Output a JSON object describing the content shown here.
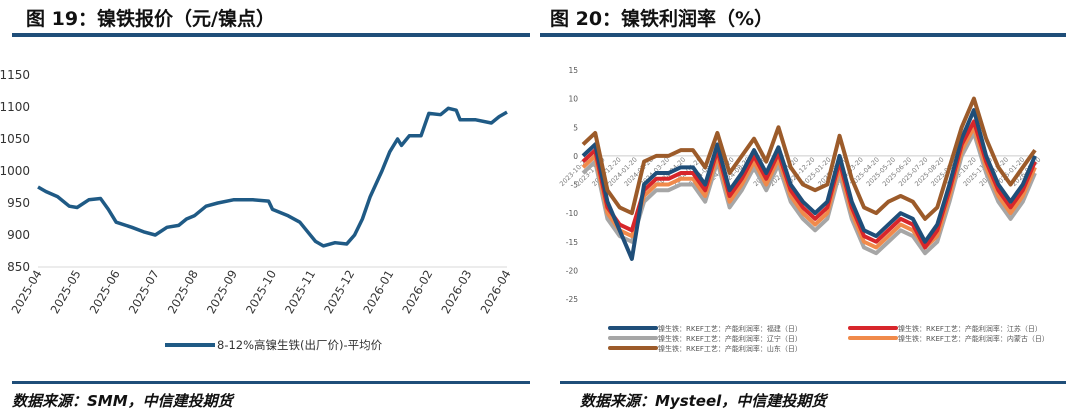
{
  "left": {
    "title": "图 19：镍铁报价（元/镍点）",
    "source": "数据来源：SMM，中信建投期货"
  },
  "right": {
    "title": "图 20：镍铁利润率（%）",
    "source": "数据来源：Mysteel，中信建投期货"
  },
  "chart_data": [
    {
      "type": "line",
      "title": "镍铁报价（元/镍点）",
      "ylim": [
        850,
        1150
      ],
      "yticks": [
        850,
        900,
        950,
        1000,
        1050,
        1100,
        1150
      ],
      "xticks": [
        "2025-04",
        "2025-05",
        "2025-06",
        "2025-07",
        "2025-08",
        "2025-09",
        "2025-10",
        "2025-11",
        "2025-12",
        "2026-01",
        "2026-02",
        "2026-03",
        "2026-04"
      ],
      "legend": "bottom",
      "color": "#1f5a85",
      "series": [
        {
          "name": "8-12%高镍生铁(出厂价)-平均价",
          "x": [
            0,
            0.2,
            0.5,
            0.8,
            1.0,
            1.3,
            1.6,
            1.8,
            2.0,
            2.4,
            2.7,
            3.0,
            3.3,
            3.6,
            3.8,
            4.0,
            4.3,
            4.6,
            5.0,
            5.5,
            5.9,
            6.0,
            6.4,
            6.7,
            6.9,
            7.1,
            7.3,
            7.6,
            7.9,
            8.1,
            8.3,
            8.5,
            8.8,
            9.0,
            9.2,
            9.3,
            9.5,
            9.8,
            10.0,
            10.3,
            10.5,
            10.7,
            10.8,
            11.2,
            11.6,
            11.8,
            12.0
          ],
          "values": [
            975,
            968,
            960,
            945,
            943,
            955,
            957,
            940,
            920,
            912,
            905,
            900,
            912,
            915,
            925,
            930,
            945,
            950,
            955,
            955,
            953,
            940,
            930,
            920,
            905,
            890,
            883,
            888,
            886,
            900,
            925,
            960,
            1000,
            1030,
            1050,
            1040,
            1055,
            1055,
            1090,
            1088,
            1098,
            1095,
            1080,
            1080,
            1075,
            1085,
            1092
          ]
        }
      ]
    },
    {
      "type": "line",
      "title": "镍铁利润率（%）",
      "ylim": [
        -25,
        15
      ],
      "yticks": [
        -25,
        -20,
        -15,
        -10,
        -5,
        0,
        5,
        10,
        15
      ],
      "xticks": [
        "2023-10-20",
        "2023-11-20",
        "2023-12-20",
        "2024-01-20",
        "2024-02-20",
        "2024-03-20",
        "2024-04-20",
        "2024-05-20",
        "2024-06-20",
        "2024-07-20",
        "2024-08-20",
        "2024-09-20",
        "2024-10-20",
        "2024-11-20",
        "2024-12-20",
        "2025-01-20",
        "2025-02-20",
        "2025-03-20",
        "2025-04-20",
        "2025-05-20",
        "2025-06-20",
        "2025-07-20",
        "2025-08-20",
        "2025-09-20",
        "2025-10-20",
        "2025-11-20",
        "2025-12-20",
        "2026-01-20",
        "2026-02-20"
      ],
      "legend": "bottom",
      "series": [
        {
          "name": "镍生铁：RKEF工艺：产能利润率：福建（日）",
          "color": "#1f4e79",
          "values": [
            0,
            2,
            -8,
            -13,
            -18,
            -5,
            -3,
            -3,
            -2,
            -2,
            -5,
            2,
            -6,
            -3,
            1,
            -3,
            1.5,
            -5,
            -8,
            -10,
            -8,
            0,
            -8,
            -13,
            -14,
            -12,
            -10,
            -11,
            -15,
            -12,
            -5,
            3,
            8,
            0,
            -5,
            -8,
            -5,
            0
          ]
        },
        {
          "name": "镍生铁：RKEF工艺：产能利润率：江苏（日）",
          "color": "#d7262b",
          "values": [
            -1,
            1,
            -9,
            -12,
            -13,
            -6,
            -4,
            -4,
            -3,
            -3,
            -6,
            1,
            -7,
            -4,
            0,
            -4,
            0.5,
            -6,
            -9,
            -11,
            -9,
            -1,
            -9,
            -14,
            -15,
            -13,
            -11,
            -12,
            -16,
            -13,
            -6,
            2,
            6,
            -1,
            -6,
            -9,
            -6,
            -1
          ]
        },
        {
          "name": "镍生铁：RKEF工艺：产能利润率：辽宁（日）",
          "color": "#a6a6a6",
          "values": [
            -3,
            -1,
            -11,
            -14,
            -15,
            -8,
            -6,
            -6,
            -5,
            -5,
            -8,
            -1,
            -9,
            -6,
            -2,
            -6,
            -1.5,
            -8,
            -11,
            -13,
            -11,
            -3,
            -11,
            -16,
            -17,
            -15,
            -13,
            -14,
            -17,
            -15,
            -8,
            0,
            4,
            -3,
            -8,
            -11,
            -8,
            -3
          ]
        },
        {
          "name": "镍生铁：RKEF工艺：产能利润率：内蒙古（日）",
          "color": "#f08a4b",
          "values": [
            -2,
            0,
            -10,
            -13,
            -14,
            -7,
            -5,
            -5,
            -4,
            -4,
            -7,
            0,
            -8,
            -5,
            -1,
            -5,
            -0.5,
            -7,
            -10,
            -12,
            -10,
            -2,
            -10,
            -15,
            -16,
            -14,
            -12,
            -13,
            -16,
            -14,
            -7,
            1,
            5,
            -2,
            -7,
            -10,
            -7,
            -2
          ]
        },
        {
          "name": "镍生铁：RKEF工艺：产能利润率：山东（日）",
          "color": "#9c5b2a",
          "values": [
            2,
            4,
            -6,
            -9,
            -10,
            -1,
            0,
            0,
            1,
            1,
            -2,
            4,
            -3,
            0,
            3,
            -1,
            5,
            -2,
            -5,
            -6,
            -5,
            3.5,
            -4,
            -9,
            -10,
            -8,
            -7,
            -8,
            -11,
            -9,
            -2,
            5,
            10,
            3,
            -2,
            -5,
            -2,
            1
          ]
        }
      ]
    }
  ]
}
